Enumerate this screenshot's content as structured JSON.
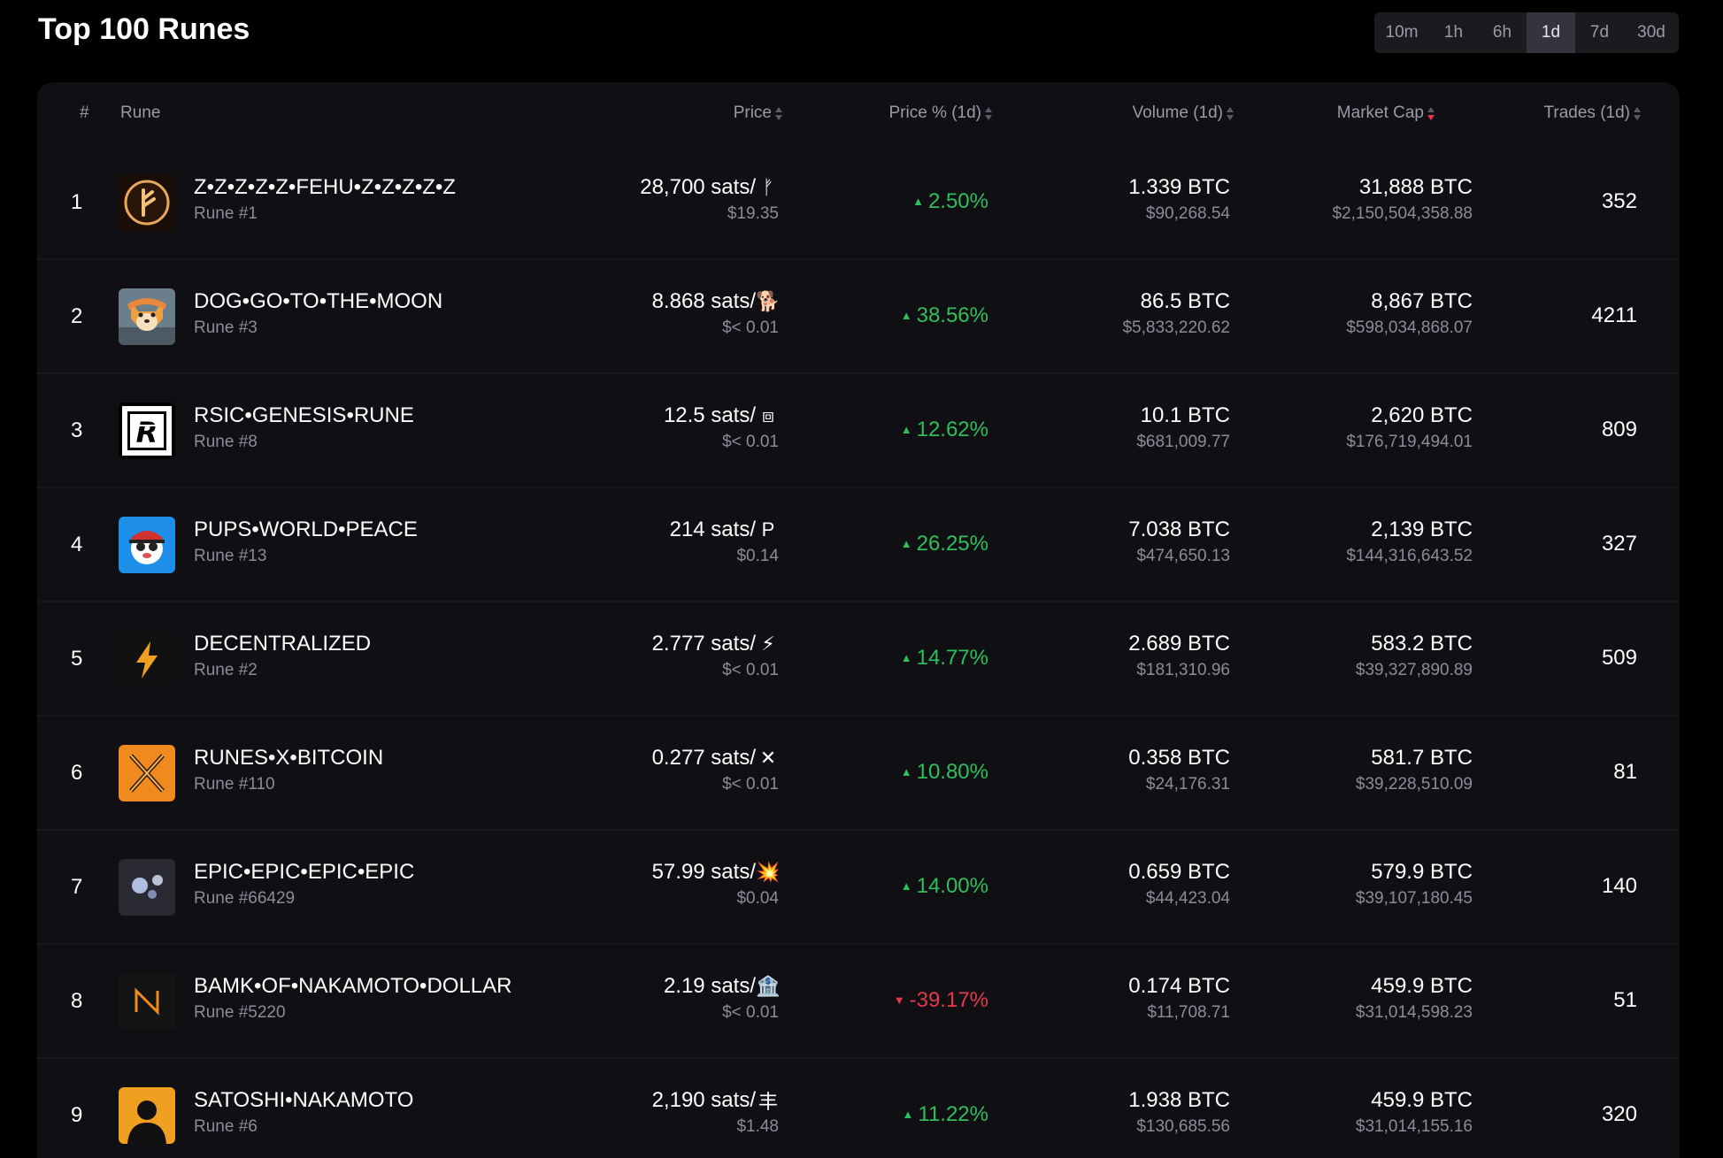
{
  "header": {
    "title": "Top 100 Runes",
    "timeframes": [
      {
        "label": "10m",
        "active": false
      },
      {
        "label": "1h",
        "active": false
      },
      {
        "label": "6h",
        "active": false
      },
      {
        "label": "1d",
        "active": true
      },
      {
        "label": "7d",
        "active": false
      },
      {
        "label": "30d",
        "active": false
      }
    ]
  },
  "table": {
    "columns": {
      "rank": "#",
      "rune": "Rune",
      "price": "Price",
      "price_pct": "Price % (1d)",
      "volume": "Volume (1d)",
      "market_cap": "Market Cap",
      "trades": "Trades (1d)"
    },
    "sorted_by": "market_cap",
    "sort_direction": "desc",
    "colors": {
      "up": "#2fbf5a",
      "down": "#e5394a"
    },
    "rows": [
      {
        "rank": "1",
        "name": "Z•Z•Z•Z•Z•FEHU•Z•Z•Z•Z•Z",
        "sub": "Rune #1",
        "icon": "fehu-rune-icon",
        "price": "28,700 sats/",
        "symbol": "ᚠ",
        "price_usd": "$19.35",
        "pct": "2.50%",
        "dir": "up",
        "volume": "1.339 BTC",
        "volume_usd": "$90,268.54",
        "mcap": "31,888 BTC",
        "mcap_usd": "$2,150,504,358.88",
        "trades": "352"
      },
      {
        "rank": "2",
        "name": "DOG•GO•TO•THE•MOON",
        "sub": "Rune #3",
        "icon": "dog-icon",
        "price": "8.868 sats/",
        "symbol": "🐕",
        "price_usd": "$< 0.01",
        "pct": "38.56%",
        "dir": "up",
        "volume": "86.5 BTC",
        "volume_usd": "$5,833,220.62",
        "mcap": "8,867 BTC",
        "mcap_usd": "$598,034,868.07",
        "trades": "4211"
      },
      {
        "rank": "3",
        "name": "RSIC•GENESIS•RUNE",
        "sub": "Rune #8",
        "icon": "rsic-icon",
        "price": "12.5 sats/",
        "symbol": "⧈",
        "price_usd": "$< 0.01",
        "pct": "12.62%",
        "dir": "up",
        "volume": "10.1 BTC",
        "volume_usd": "$681,009.77",
        "mcap": "2,620 BTC",
        "mcap_usd": "$176,719,494.01",
        "trades": "809"
      },
      {
        "rank": "4",
        "name": "PUPS•WORLD•PEACE",
        "sub": "Rune #13",
        "icon": "pups-icon",
        "price": "214 sats/",
        "symbol": "P",
        "price_usd": "$0.14",
        "pct": "26.25%",
        "dir": "up",
        "volume": "7.038 BTC",
        "volume_usd": "$474,650.13",
        "mcap": "2,139 BTC",
        "mcap_usd": "$144,316,643.52",
        "trades": "327"
      },
      {
        "rank": "5",
        "name": "DECENTRALIZED",
        "sub": "Rune #2",
        "icon": "lightning-icon",
        "price": "2.777 sats/",
        "symbol": "⚡",
        "price_usd": "$< 0.01",
        "pct": "14.77%",
        "dir": "up",
        "volume": "2.689 BTC",
        "volume_usd": "$181,310.96",
        "mcap": "583.2 BTC",
        "mcap_usd": "$39,327,890.89",
        "trades": "509"
      },
      {
        "rank": "6",
        "name": "RUNES•X•BITCOIN",
        "sub": "Rune #110",
        "icon": "x-icon",
        "price": "0.277 sats/",
        "symbol": "✕",
        "price_usd": "$< 0.01",
        "pct": "10.80%",
        "dir": "up",
        "volume": "0.358 BTC",
        "volume_usd": "$24,176.31",
        "mcap": "581.7 BTC",
        "mcap_usd": "$39,228,510.09",
        "trades": "81"
      },
      {
        "rank": "7",
        "name": "EPIC•EPIC•EPIC•EPIC",
        "sub": "Rune #66429",
        "icon": "epic-icon",
        "price": "57.99 sats/",
        "symbol": "💥",
        "price_usd": "$0.04",
        "pct": "14.00%",
        "dir": "up",
        "volume": "0.659 BTC",
        "volume_usd": "$44,423.04",
        "mcap": "579.9 BTC",
        "mcap_usd": "$39,107,180.45",
        "trades": "140"
      },
      {
        "rank": "8",
        "name": "BAMK•OF•NAKAMOTO•DOLLAR",
        "sub": "Rune #5220",
        "icon": "bamk-icon",
        "price": "2.19 sats/",
        "symbol": "🏦",
        "price_usd": "$< 0.01",
        "pct": "-39.17%",
        "dir": "down",
        "volume": "0.174 BTC",
        "volume_usd": "$11,708.71",
        "mcap": "459.9 BTC",
        "mcap_usd": "$31,014,598.23",
        "trades": "51"
      },
      {
        "rank": "9",
        "name": "SATOSHI•NAKAMOTO",
        "sub": "Rune #6",
        "icon": "satoshi-icon",
        "price": "2,190 sats/",
        "symbol": "丰",
        "price_usd": "$1.48",
        "pct": "11.22%",
        "dir": "up",
        "volume": "1.938 BTC",
        "volume_usd": "$130,685.56",
        "mcap": "459.9 BTC",
        "mcap_usd": "$31,014,155.16",
        "trades": "320"
      }
    ]
  }
}
